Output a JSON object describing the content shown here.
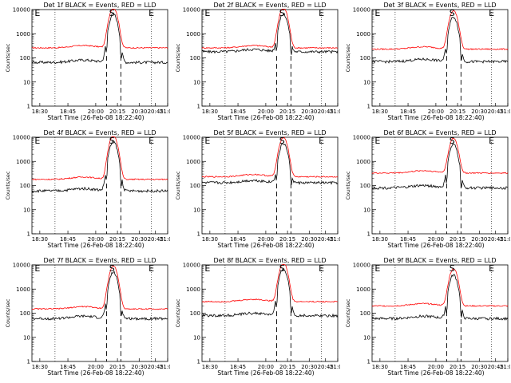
{
  "chart_data": {
    "type": "line",
    "layout": "3x3 grid",
    "ylabel": "Counts/sec",
    "xlabel": "Start Time (26-Feb-08 18:22:40)",
    "x_ticks": [
      "18:30",
      "18:45",
      "20:00",
      "20:15",
      "20:30",
      "20:45",
      "21:00"
    ],
    "y_ticks": [
      "1",
      "10",
      "100",
      "1000",
      "10000"
    ],
    "y_scale": "log",
    "ylim": [
      1,
      10000
    ],
    "markers": [
      "E",
      "S",
      "E"
    ],
    "series_colors": {
      "events": "#000000",
      "lld": "#ff0000"
    },
    "panels": [
      {
        "title": "Det 1f BLACK = Events, RED = LLD",
        "events_base": 65,
        "lld_base": 260,
        "peak": 12000
      },
      {
        "title": "Det 2f BLACK = Events, RED = LLD",
        "events_base": 180,
        "lld_base": 260,
        "peak": 12000
      },
      {
        "title": "Det 3f BLACK = Events, RED = LLD",
        "events_base": 70,
        "lld_base": 230,
        "peak": 9000
      },
      {
        "title": "Det 4f BLACK = Events, RED = LLD",
        "events_base": 60,
        "lld_base": 180,
        "peak": 12000
      },
      {
        "title": "Det 5f BLACK = Events, RED = LLD",
        "events_base": 130,
        "lld_base": 230,
        "peak": 10000
      },
      {
        "title": "Det 6f BLACK = Events, RED = LLD",
        "events_base": 80,
        "lld_base": 330,
        "peak": 9000
      },
      {
        "title": "Det 7f BLACK = Events, RED = LLD",
        "events_base": 60,
        "lld_base": 150,
        "peak": 9000
      },
      {
        "title": "Det 8f BLACK = Events, RED = LLD",
        "events_base": 80,
        "lld_base": 300,
        "peak": 12000
      },
      {
        "title": "Det 9f BLACK = Events, RED = LLD",
        "events_base": 60,
        "lld_base": 200,
        "peak": 7000
      }
    ]
  }
}
